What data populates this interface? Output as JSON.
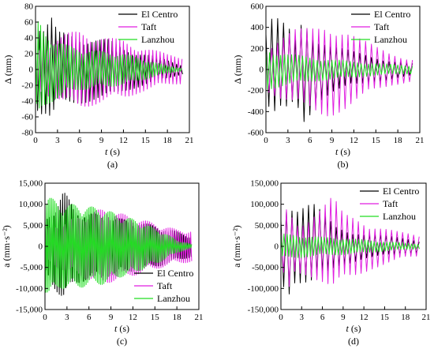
{
  "palette": {
    "el_centro": "#000000",
    "taft": "#e01ee0",
    "lanzhou": "#22dd22",
    "axis": "#000000"
  },
  "chart_data": [
    {
      "id": "a",
      "type": "line",
      "caption": "(a)",
      "ylabel": "Δ (mm)",
      "xlabel_var": "t",
      "xlabel_unit": " (s)",
      "xlim": [
        0,
        21
      ],
      "ylim": [
        -80,
        80
      ],
      "xticks": [
        0,
        3,
        6,
        9,
        12,
        15,
        18,
        21
      ],
      "yticks": [
        -80,
        -60,
        -40,
        -20,
        0,
        20,
        40,
        60,
        80
      ],
      "ytick_labels": [
        "-80",
        "-60",
        "-40",
        "-20",
        "0",
        "20",
        "40",
        "60",
        "80"
      ],
      "legend": "top-right",
      "series": [
        {
          "name": "El Centro",
          "color": "#000000",
          "duration": 20,
          "period": 0.55,
          "envelope": [
            [
              0,
              40
            ],
            [
              0.5,
              62
            ],
            [
              1,
              55
            ],
            [
              2.2,
              68
            ],
            [
              3,
              48
            ],
            [
              5,
              45
            ],
            [
              8,
              40
            ],
            [
              10,
              38
            ],
            [
              12,
              28
            ],
            [
              15,
              20
            ],
            [
              18,
              12
            ],
            [
              20,
              6
            ]
          ]
        },
        {
          "name": "Taft",
          "color": "#e01ee0",
          "duration": 20,
          "period": 0.5,
          "envelope": [
            [
              0,
              25
            ],
            [
              2,
              35
            ],
            [
              4,
              45
            ],
            [
              6,
              50
            ],
            [
              8,
              45
            ],
            [
              10,
              40
            ],
            [
              12,
              38
            ],
            [
              14,
              30
            ],
            [
              16,
              25
            ],
            [
              18,
              20
            ],
            [
              20,
              18
            ]
          ]
        },
        {
          "name": "Lanzhou",
          "color": "#22dd22",
          "duration": 20,
          "period": 0.35,
          "envelope": [
            [
              0,
              58
            ],
            [
              0.5,
              62
            ],
            [
              1,
              50
            ],
            [
              2,
              42
            ],
            [
              4,
              32
            ],
            [
              6,
              26
            ],
            [
              8,
              24
            ],
            [
              10,
              22
            ],
            [
              12,
              20
            ],
            [
              14,
              15
            ],
            [
              16,
              10
            ],
            [
              18,
              5
            ],
            [
              20,
              2
            ]
          ]
        }
      ]
    },
    {
      "id": "b",
      "type": "line",
      "caption": "(b)",
      "ylabel": "Δ (mm)",
      "xlabel_var": "t",
      "xlabel_unit": " (s)",
      "xlim": [
        0,
        21
      ],
      "ylim": [
        -600,
        600
      ],
      "xticks": [
        0,
        3,
        6,
        9,
        12,
        15,
        18,
        21
      ],
      "yticks": [
        -600,
        -400,
        -200,
        0,
        200,
        400,
        600
      ],
      "ytick_labels": [
        "-600",
        "-400",
        "-200",
        "0",
        "200",
        "400",
        "600"
      ],
      "legend": "top-right",
      "series": [
        {
          "name": "El Centro",
          "color": "#000000",
          "duration": 20,
          "period": 0.8,
          "envelope": [
            [
              0,
              350
            ],
            [
              1,
              520
            ],
            [
              2,
              460
            ],
            [
              3,
              420
            ],
            [
              4,
              300
            ],
            [
              5,
              525
            ],
            [
              5.6,
              480
            ],
            [
              7,
              320
            ],
            [
              9,
              230
            ],
            [
              12,
              170
            ],
            [
              15,
              120
            ],
            [
              18,
              80
            ],
            [
              20,
              60
            ]
          ]
        },
        {
          "name": "Taft",
          "color": "#e01ee0",
          "duration": 20,
          "period": 0.8,
          "envelope": [
            [
              0,
              200
            ],
            [
              2,
              300
            ],
            [
              4,
              380
            ],
            [
              6,
              400
            ],
            [
              8,
              450
            ],
            [
              9,
              440
            ],
            [
              11,
              380
            ],
            [
              13,
              290
            ],
            [
              15,
              220
            ],
            [
              17,
              160
            ],
            [
              20,
              110
            ]
          ]
        },
        {
          "name": "Lanzhou",
          "color": "#22dd22",
          "duration": 20,
          "period": 0.5,
          "envelope": [
            [
              0,
              200
            ],
            [
              1,
              180
            ],
            [
              3,
              150
            ],
            [
              5,
              130
            ],
            [
              7,
              110
            ],
            [
              10,
              90
            ],
            [
              13,
              70
            ],
            [
              16,
              55
            ],
            [
              20,
              40
            ]
          ]
        }
      ]
    },
    {
      "id": "c",
      "type": "line",
      "caption": "(c)",
      "ylabel": "a (mm·s⁻²)",
      "xlabel_var": "t",
      "xlabel_unit": " (s)",
      "xlim": [
        0,
        21
      ],
      "ylim": [
        -15000,
        15000
      ],
      "xticks": [
        0,
        3,
        6,
        9,
        12,
        15,
        18,
        21
      ],
      "yticks": [
        -15000,
        -10000,
        -5000,
        0,
        5000,
        10000,
        15000
      ],
      "ytick_labels": [
        "-15,000",
        "-10,000",
        "-5,000",
        "0",
        "5,000",
        "10,000",
        "15,000"
      ],
      "legend": "bottom-right",
      "series": [
        {
          "name": "El Centro",
          "color": "#000000",
          "duration": 20,
          "period": 0.3,
          "envelope": [
            [
              0,
              6000
            ],
            [
              1,
              9000
            ],
            [
              2.5,
              13500
            ],
            [
              4,
              9000
            ],
            [
              6,
              8000
            ],
            [
              9,
              7000
            ],
            [
              12,
              6000
            ],
            [
              15,
              5000
            ],
            [
              18,
              3500
            ],
            [
              20,
              2500
            ]
          ]
        },
        {
          "name": "Taft",
          "color": "#e01ee0",
          "duration": 20,
          "period": 0.28,
          "envelope": [
            [
              0,
              4000
            ],
            [
              3,
              6000
            ],
            [
              6,
              8000
            ],
            [
              8,
              9000
            ],
            [
              10,
              8000
            ],
            [
              12,
              7000
            ],
            [
              14,
              6000
            ],
            [
              16,
              5000
            ],
            [
              18,
              4000
            ],
            [
              20,
              3800
            ]
          ]
        },
        {
          "name": "Lanzhou",
          "color": "#22dd22",
          "duration": 20,
          "period": 0.22,
          "envelope": [
            [
              0,
              11000
            ],
            [
              0.5,
              12000
            ],
            [
              2,
              10000
            ],
            [
              4,
              10000
            ],
            [
              6,
              9500
            ],
            [
              8,
              9000
            ],
            [
              10,
              7500
            ],
            [
              12,
              6500
            ],
            [
              14,
              5000
            ],
            [
              16,
              3500
            ],
            [
              18,
              1500
            ],
            [
              20,
              500
            ]
          ]
        }
      ]
    },
    {
      "id": "d",
      "type": "line",
      "caption": "(d)",
      "ylabel": "a (mm·s⁻²)",
      "xlabel_var": "t",
      "xlabel_unit": " (s)",
      "xlim": [
        0,
        21
      ],
      "ylim": [
        -150000,
        150000
      ],
      "xticks": [
        0,
        3,
        6,
        9,
        12,
        15,
        18,
        21
      ],
      "yticks": [
        -150000,
        -100000,
        -50000,
        0,
        50000,
        100000,
        150000
      ],
      "ytick_labels": [
        "-150,000",
        "-100,000",
        "-50,000",
        "0",
        "50,000",
        "100,000",
        "150,000"
      ],
      "legend": "top-right",
      "series": [
        {
          "name": "El Centro",
          "color": "#000000",
          "duration": 20,
          "period": 0.8,
          "envelope": [
            [
              0,
              80000
            ],
            [
              1,
              120000
            ],
            [
              2,
              90000
            ],
            [
              3,
              95000
            ],
            [
              4,
              100000
            ],
            [
              5,
              100000
            ],
            [
              6,
              80000
            ],
            [
              8,
              50000
            ],
            [
              10,
              40000
            ],
            [
              12,
              30000
            ],
            [
              15,
              25000
            ],
            [
              18,
              20000
            ],
            [
              20,
              15000
            ]
          ]
        },
        {
          "name": "Taft",
          "color": "#e01ee0",
          "duration": 20,
          "period": 0.8,
          "envelope": [
            [
              0,
              40000
            ],
            [
              1,
              110000
            ],
            [
              2,
              60000
            ],
            [
              4,
              70000
            ],
            [
              6,
              95000
            ],
            [
              7.5,
              120000
            ],
            [
              9,
              80000
            ],
            [
              11,
              70000
            ],
            [
              13,
              55000
            ],
            [
              15,
              45000
            ],
            [
              17,
              35000
            ],
            [
              20,
              25000
            ]
          ]
        },
        {
          "name": "Lanzhou",
          "color": "#22dd22",
          "duration": 20,
          "period": 0.45,
          "envelope": [
            [
              0,
              30000
            ],
            [
              2,
              28000
            ],
            [
              4,
              25000
            ],
            [
              6,
              22000
            ],
            [
              9,
              20000
            ],
            [
              12,
              16000
            ],
            [
              15,
              12000
            ],
            [
              18,
              8000
            ],
            [
              20,
              6000
            ]
          ]
        }
      ]
    }
  ]
}
